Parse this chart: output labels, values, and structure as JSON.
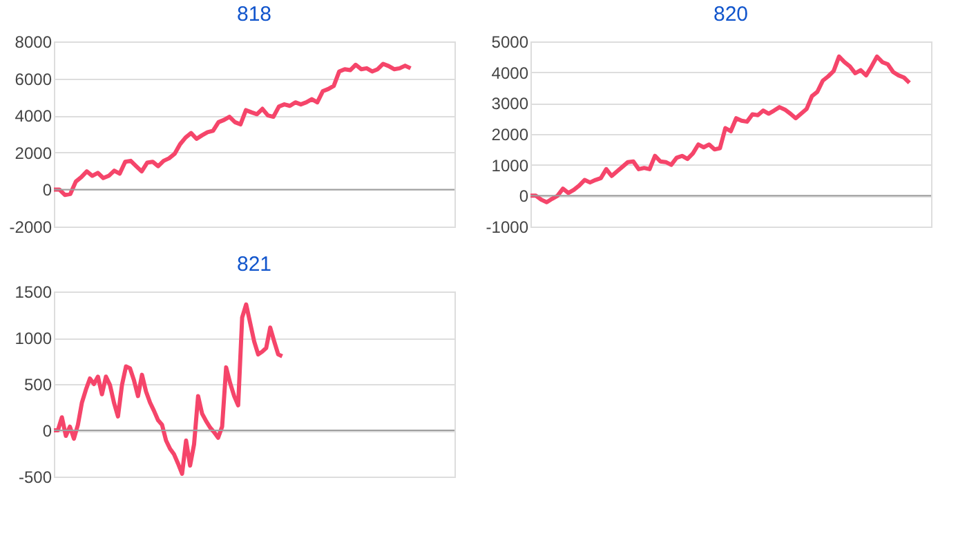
{
  "chart_data": [
    {
      "type": "line",
      "title": "818",
      "categories": [
        null,
        null,
        null,
        null,
        null,
        null,
        null,
        null,
        null,
        null,
        null,
        null,
        null,
        null,
        null,
        null,
        null,
        null,
        null,
        null,
        null,
        null,
        null,
        null,
        null,
        null,
        null,
        null,
        null,
        null,
        null,
        null,
        null,
        null,
        null,
        null,
        null,
        null,
        null,
        null,
        null,
        null,
        null,
        null,
        null,
        null,
        null,
        null,
        null,
        null,
        null,
        null,
        null,
        null,
        null,
        null,
        null,
        null,
        null,
        null,
        null,
        null,
        null,
        null,
        null,
        null,
        null,
        null,
        null,
        null,
        null,
        null,
        null,
        null
      ],
      "series": [
        {
          "color": "#f5456a",
          "values": [
            0,
            0,
            -290,
            -240,
            430,
            670,
            980,
            740,
            900,
            620,
            740,
            1020,
            860,
            1500,
            1550,
            1260,
            980,
            1450,
            1500,
            1260,
            1550,
            1690,
            1930,
            2450,
            2810,
            3050,
            2740,
            2930,
            3100,
            3170,
            3640,
            3760,
            3930,
            3640,
            3520,
            4290,
            4170,
            4070,
            4360,
            4000,
            3930,
            4480,
            4600,
            4520,
            4710,
            4600,
            4710,
            4880,
            4710,
            5310,
            5430,
            5600,
            6380,
            6500,
            6450,
            6740,
            6500,
            6550,
            6380,
            6500,
            6790,
            6670,
            6500,
            6550,
            6690,
            6550,
            null,
            null,
            null,
            null,
            null,
            null,
            null,
            null
          ]
        }
      ],
      "ylim": [
        -2000,
        8000
      ],
      "yticks": [
        -2000,
        0,
        2000,
        4000,
        6000,
        8000
      ],
      "grid": "y",
      "legend": false,
      "tick_labels": "y",
      "line_style": "solid",
      "ref_lines": [
        {
          "axis": "y",
          "value": 0,
          "color": "#9e9e9e"
        }
      ]
    },
    {
      "type": "line",
      "title": "820",
      "categories": [
        null,
        null,
        null,
        null,
        null,
        null,
        null,
        null,
        null,
        null,
        null,
        null,
        null,
        null,
        null,
        null,
        null,
        null,
        null,
        null,
        null,
        null,
        null,
        null,
        null,
        null,
        null,
        null,
        null,
        null,
        null,
        null,
        null,
        null,
        null,
        null,
        null,
        null,
        null,
        null,
        null,
        null,
        null,
        null,
        null,
        null,
        null,
        null,
        null,
        null,
        null,
        null,
        null,
        null,
        null,
        null,
        null,
        null,
        null,
        null,
        null,
        null,
        null,
        null,
        null,
        null,
        null,
        null,
        null,
        null,
        null,
        null,
        null,
        null,
        null
      ],
      "series": [
        {
          "color": "#f5456a",
          "values": [
            0,
            0,
            -130,
            -210,
            -100,
            0,
            230,
            90,
            190,
            330,
            510,
            430,
            510,
            570,
            860,
            640,
            790,
            940,
            1090,
            1110,
            860,
            900,
            860,
            1290,
            1110,
            1090,
            1000,
            1230,
            1290,
            1190,
            1370,
            1660,
            1570,
            1660,
            1500,
            1540,
            2190,
            2090,
            2510,
            2430,
            2400,
            2640,
            2610,
            2760,
            2660,
            2760,
            2870,
            2790,
            2660,
            2510,
            2660,
            2810,
            3230,
            3370,
            3730,
            3870,
            4040,
            4510,
            4330,
            4190,
            3970,
            4070,
            3900,
            4190,
            4510,
            4330,
            4260,
            4010,
            3900,
            3830,
            3660,
            null,
            null,
            null,
            null
          ]
        }
      ],
      "ylim": [
        -1000,
        5000
      ],
      "yticks": [
        -1000,
        0,
        1000,
        2000,
        3000,
        4000,
        5000
      ],
      "grid": "y",
      "legend": false,
      "tick_labels": "y",
      "line_style": "solid",
      "ref_lines": [
        {
          "axis": "y",
          "value": 0,
          "color": "#9e9e9e"
        }
      ]
    },
    {
      "type": "line",
      "title": "821",
      "categories": [
        null,
        null,
        null,
        null,
        null,
        null,
        null,
        null,
        null,
        null,
        null,
        null,
        null,
        null,
        null,
        null,
        null,
        null,
        null,
        null,
        null,
        null,
        null,
        null,
        null,
        null,
        null,
        null,
        null,
        null,
        null,
        null,
        null,
        null,
        null,
        null,
        null,
        null,
        null,
        null,
        null,
        null,
        null,
        null,
        null,
        null,
        null,
        null,
        null,
        null,
        null,
        null,
        null,
        null,
        null,
        null,
        null,
        null,
        null,
        null,
        null,
        null,
        null,
        null,
        null,
        null,
        null,
        null,
        null,
        null,
        null,
        null,
        null,
        null,
        null,
        null,
        null,
        null,
        null,
        null,
        null,
        null,
        null,
        null,
        null,
        null,
        null,
        null,
        null,
        null,
        null,
        null,
        null,
        null,
        null,
        null,
        null,
        null,
        null,
        null,
        null
      ],
      "series": [
        {
          "color": "#f5456a",
          "values": [
            0,
            0,
            140,
            -60,
            40,
            -90,
            60,
            300,
            440,
            560,
            500,
            580,
            390,
            580,
            490,
            300,
            150,
            490,
            690,
            670,
            540,
            370,
            600,
            420,
            300,
            210,
            110,
            60,
            -110,
            -200,
            -260,
            -360,
            -470,
            -110,
            -380,
            -150,
            370,
            180,
            100,
            30,
            -20,
            -80,
            40,
            680,
            510,
            370,
            270,
            1220,
            1360,
            1160,
            960,
            820,
            850,
            890,
            1110,
            960,
            820,
            800,
            null,
            null,
            null,
            null,
            null,
            null,
            null,
            null,
            null,
            null,
            null,
            null,
            null,
            null,
            null,
            null,
            null,
            null,
            null,
            null,
            null,
            null,
            null,
            null,
            null,
            null,
            null,
            null,
            null,
            null,
            null,
            null,
            null,
            null,
            null,
            null,
            null,
            null,
            null,
            null,
            null,
            null,
            null
          ]
        }
      ],
      "ylim": [
        -500,
        1500
      ],
      "yticks": [
        -500,
        0,
        500,
        1000,
        1500
      ],
      "grid": "y",
      "legend": false,
      "tick_labels": "y",
      "line_style": "solid",
      "ref_lines": [
        {
          "axis": "y",
          "value": 0,
          "color": "#9e9e9e"
        }
      ]
    }
  ]
}
